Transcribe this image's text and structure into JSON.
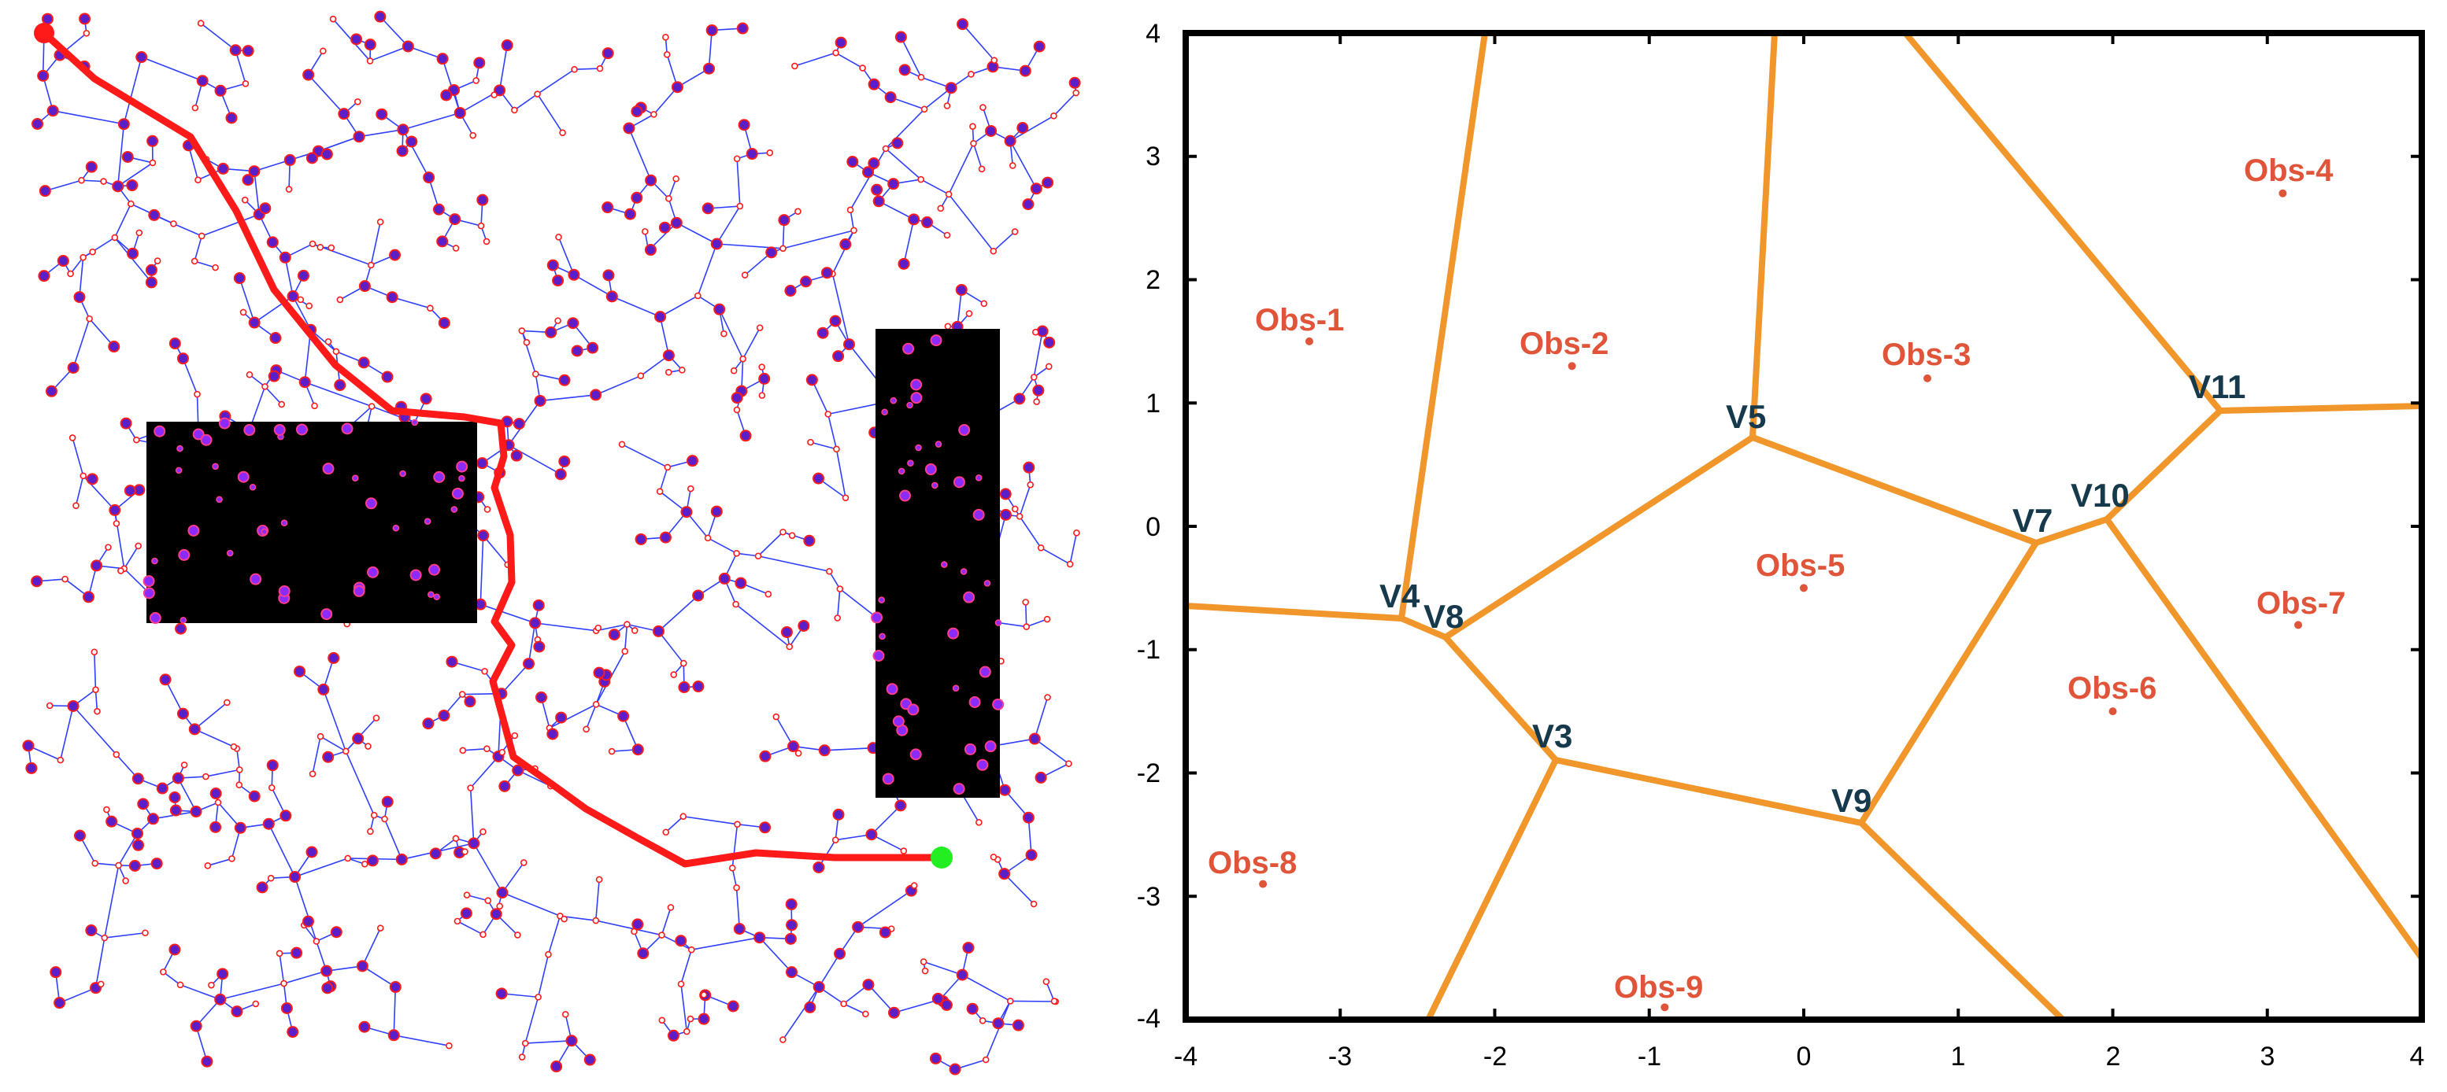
{
  "colors": {
    "tree_edge": "#2f3fff",
    "node_outline": "#ff1a1a",
    "node_fill": "#5a1fc8",
    "path": "#ff1a1a",
    "start": "#ff1a1a",
    "goal": "#22ee22",
    "obstacle": "#000000",
    "voronoi_edge": "#f0962a",
    "obs_label": "#e0553a",
    "vertex_label": "#163a4c",
    "axis": "#000000"
  },
  "rrt_panel": {
    "obstacle_count": 2,
    "start_icon": "start-node-icon",
    "goal_icon": "goal-node-icon"
  },
  "voronoi_panel": {
    "xlim": [
      -4,
      4
    ],
    "ylim": [
      -4,
      4
    ],
    "x_ticks": [
      "-4",
      "-3",
      "-2",
      "-1",
      "0",
      "1",
      "2",
      "3",
      "4"
    ],
    "y_ticks": [
      "4",
      "3",
      "2",
      "1",
      "0",
      "-1",
      "-2",
      "-3",
      "-4"
    ],
    "obstacles": [
      {
        "label": "Obs-1",
        "x": -3.2,
        "y": 1.5
      },
      {
        "label": "Obs-2",
        "x": -1.5,
        "y": 1.3
      },
      {
        "label": "Obs-3",
        "x": 0.8,
        "y": 1.2
      },
      {
        "label": "Obs-4",
        "x": 3.1,
        "y": 2.7
      },
      {
        "label": "Obs-5",
        "x": 0.0,
        "y": -0.5
      },
      {
        "label": "Obs-6",
        "x": 2.0,
        "y": -1.5
      },
      {
        "label": "Obs-7",
        "x": 3.2,
        "y": -0.8
      },
      {
        "label": "Obs-8",
        "x": -3.5,
        "y": -2.9
      },
      {
        "label": "Obs-9",
        "x": -0.9,
        "y": -3.9
      }
    ],
    "vertices": [
      {
        "label": "V3",
        "x": -1.62,
        "y": -1.88
      },
      {
        "label": "V4",
        "x": -2.6,
        "y": -0.74
      },
      {
        "label": "V5",
        "x": -0.37,
        "y": 0.72
      },
      {
        "label": "V7",
        "x": 1.43,
        "y": -0.12
      },
      {
        "label": "V8",
        "x": -2.33,
        "y": -0.88
      },
      {
        "label": "V9",
        "x": 0.32,
        "y": -2.38
      },
      {
        "label": "V10",
        "x": 1.88,
        "y": 0.07
      },
      {
        "label": "V11",
        "x": 2.6,
        "y": 0.94
      }
    ]
  }
}
